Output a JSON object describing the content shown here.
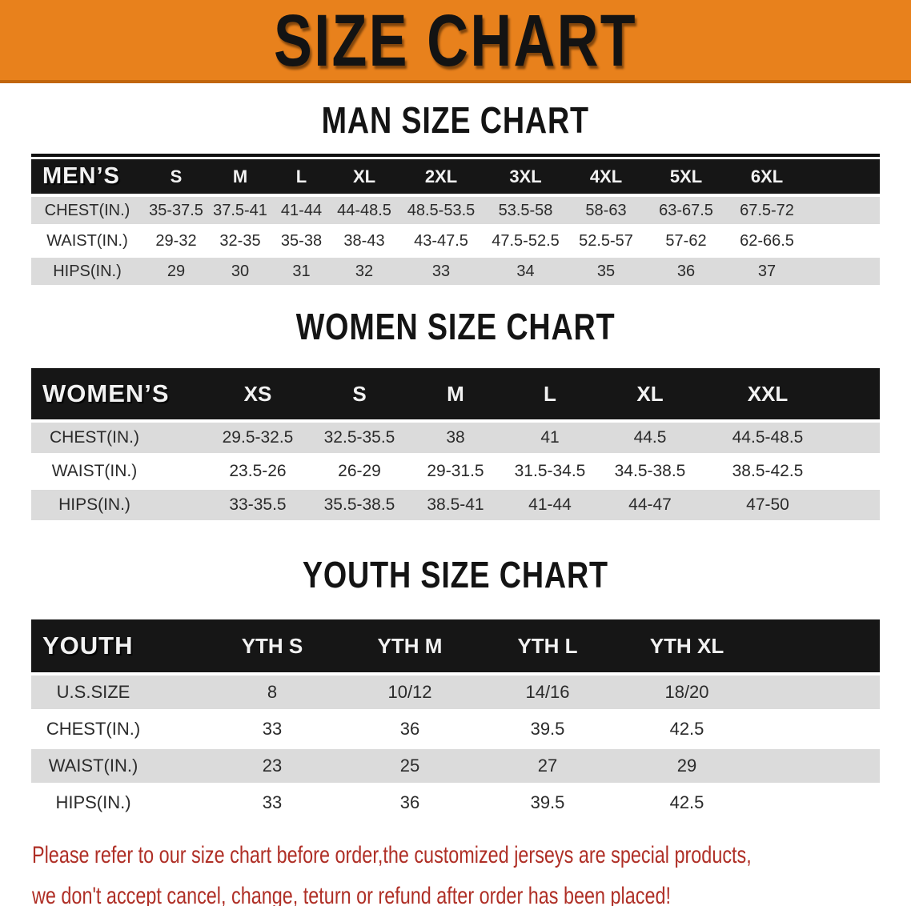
{
  "banner": {
    "title": "SIZE CHART"
  },
  "colors": {
    "banner_bg": "#E8811C",
    "banner_text": "#131313",
    "header_bar": "#161616",
    "header_text": "#F2F2F2",
    "stripe": "#DBDBDB",
    "body_text": "#2B2B2B",
    "footer_text": "#AF2F26"
  },
  "sections": [
    {
      "heading": "MAN SIZE CHART",
      "label": "MEN’S",
      "columns": [
        "S",
        "M",
        "L",
        "XL",
        "2XL",
        "3XL",
        "4XL",
        "5XL",
        "6XL"
      ],
      "rows": [
        {
          "label": "CHEST(IN.)",
          "values": [
            "35-37.5",
            "37.5-41",
            "41-44",
            "44-48.5",
            "48.5-53.5",
            "53.5-58",
            "58-63",
            "63-67.5",
            "67.5-72"
          ]
        },
        {
          "label": "WAIST(IN.)",
          "values": [
            "29-32",
            "32-35",
            "35-38",
            "38-43",
            "43-47.5",
            "47.5-52.5",
            "52.5-57",
            "57-62",
            "62-66.5"
          ]
        },
        {
          "label": "HIPS(IN.)",
          "values": [
            "29",
            "30",
            "31",
            "32",
            "33",
            "34",
            "35",
            "36",
            "37"
          ]
        }
      ]
    },
    {
      "heading": "WOMEN SIZE CHART",
      "label": "WOMEN’S",
      "columns": [
        "XS",
        "S",
        "M",
        "L",
        "XL",
        "XXL"
      ],
      "rows": [
        {
          "label": "CHEST(IN.)",
          "values": [
            "29.5-32.5",
            "32.5-35.5",
            "38",
            "41",
            "44.5",
            "44.5-48.5"
          ]
        },
        {
          "label": "WAIST(IN.)",
          "values": [
            "23.5-26",
            "26-29",
            "29-31.5",
            "31.5-34.5",
            "34.5-38.5",
            "38.5-42.5"
          ]
        },
        {
          "label": "HIPS(IN.)",
          "values": [
            "33-35.5",
            "35.5-38.5",
            "38.5-41",
            "41-44",
            "44-47",
            "47-50"
          ]
        }
      ]
    },
    {
      "heading": "YOUTH SIZE CHART",
      "label": "YOUTH",
      "columns": [
        "YTH S",
        "YTH M",
        "YTH L",
        "YTH XL"
      ],
      "rows": [
        {
          "label": "U.S.SIZE",
          "values": [
            "8",
            "10/12",
            "14/16",
            "18/20"
          ]
        },
        {
          "label": "CHEST(IN.)",
          "values": [
            "33",
            "36",
            "39.5",
            "42.5"
          ]
        },
        {
          "label": "WAIST(IN.)",
          "values": [
            "23",
            "25",
            "27",
            "29"
          ]
        },
        {
          "label": "HIPS(IN.)",
          "values": [
            "33",
            "36",
            "39.5",
            "42.5"
          ]
        }
      ]
    }
  ],
  "footer": {
    "line1": "Please refer to our size chart before order,the customized jerseys are special products,",
    "line2": "we don't accept cancel, change, teturn or refund after order has been placed!"
  }
}
